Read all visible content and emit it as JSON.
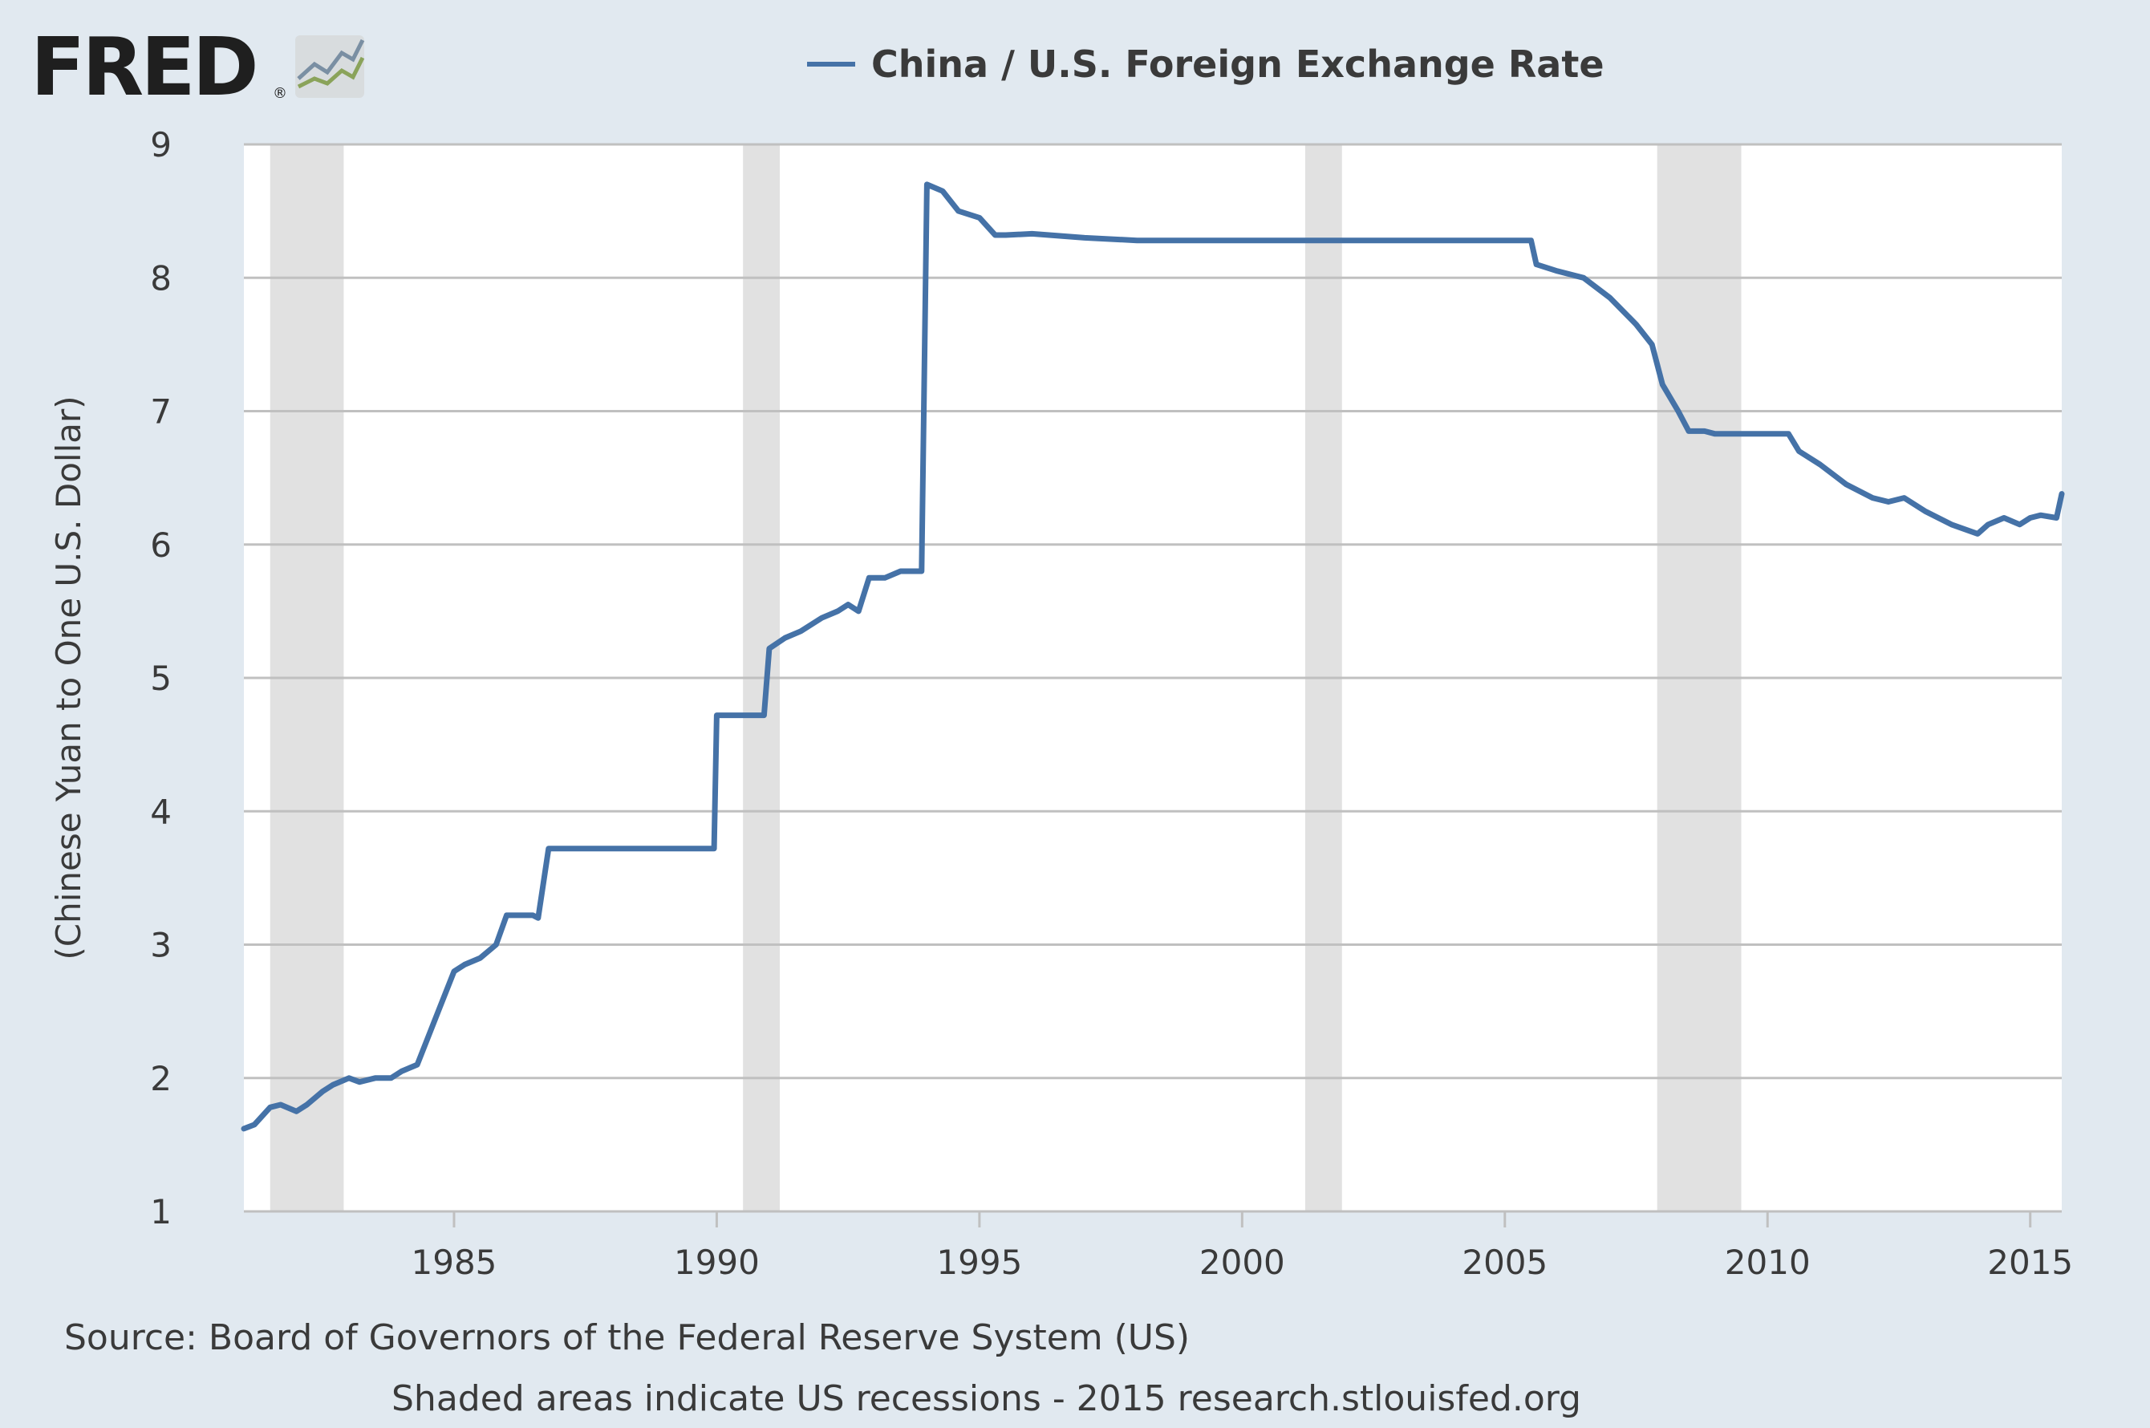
{
  "logo": {
    "text": "FRED",
    "mark": "®",
    "icon": "fred-graph-icon"
  },
  "legend": {
    "label": "China / U.S. Foreign Exchange Rate",
    "color": "#4572a7"
  },
  "footer": {
    "source": "Source: Board of Governors of the Federal Reserve System (US)",
    "note": "Shaded areas indicate US recessions - 2015 research.stlouisfed.org"
  },
  "colors": {
    "background": "#e1e9f0",
    "plot_background": "#ffffff",
    "gridline": "#c0c0c0",
    "recession_shading": "#e1e1e1",
    "series": "#4572a7"
  },
  "chart_data": {
    "type": "line",
    "title": "",
    "xlabel": "",
    "ylabel": "(Chinese Yuan to One U.S. Dollar)",
    "xlim": [
      1981.0,
      2015.6
    ],
    "ylim": [
      1,
      9
    ],
    "x_ticks": [
      "1985",
      "1990",
      "1995",
      "2000",
      "2005",
      "2010",
      "2015"
    ],
    "y_ticks": [
      "1",
      "2",
      "3",
      "4",
      "5",
      "6",
      "7",
      "8",
      "9"
    ],
    "grid": true,
    "legend_position": "top-center",
    "recessions": [
      [
        1981.5,
        1982.9
      ],
      [
        1990.5,
        1991.2
      ],
      [
        2001.2,
        2001.9
      ],
      [
        2007.9,
        2009.5
      ]
    ],
    "series": [
      {
        "name": "China / U.S. Foreign Exchange Rate",
        "x": [
          1981.0,
          1981.2,
          1981.5,
          1981.7,
          1982.0,
          1982.2,
          1982.5,
          1982.7,
          1983.0,
          1983.2,
          1983.5,
          1983.8,
          1984.0,
          1984.3,
          1984.5,
          1984.7,
          1985.0,
          1985.2,
          1985.5,
          1985.8,
          1986.0,
          1986.3,
          1986.5,
          1986.6,
          1986.8,
          1987.0,
          1988.0,
          1989.0,
          1989.95,
          1990.0,
          1990.5,
          1990.9,
          1991.0,
          1991.3,
          1991.6,
          1992.0,
          1992.3,
          1992.5,
          1992.7,
          1992.9,
          1993.2,
          1993.5,
          1993.9,
          1994.0,
          1994.3,
          1994.6,
          1995.0,
          1995.3,
          1995.5,
          1996.0,
          1997.0,
          1998.0,
          1999.0,
          2000.0,
          2001.0,
          2002.0,
          2003.0,
          2004.0,
          2005.0,
          2005.5,
          2005.6,
          2006.0,
          2006.5,
          2007.0,
          2007.5,
          2007.8,
          2008.0,
          2008.3,
          2008.5,
          2008.8,
          2009.0,
          2009.5,
          2010.0,
          2010.4,
          2010.6,
          2011.0,
          2011.5,
          2012.0,
          2012.3,
          2012.6,
          2013.0,
          2013.5,
          2014.0,
          2014.2,
          2014.5,
          2014.8,
          2015.0,
          2015.2,
          2015.5,
          2015.6
        ],
        "values": [
          1.62,
          1.65,
          1.78,
          1.8,
          1.75,
          1.8,
          1.9,
          1.95,
          2.0,
          1.97,
          2.0,
          2.0,
          2.05,
          2.1,
          2.3,
          2.5,
          2.8,
          2.85,
          2.9,
          3.0,
          3.22,
          3.22,
          3.22,
          3.2,
          3.72,
          3.72,
          3.72,
          3.72,
          3.72,
          4.72,
          4.72,
          4.72,
          5.22,
          5.3,
          5.35,
          5.45,
          5.5,
          5.55,
          5.5,
          5.75,
          5.75,
          5.8,
          5.8,
          8.7,
          8.65,
          8.5,
          8.45,
          8.32,
          8.32,
          8.33,
          8.3,
          8.28,
          8.28,
          8.28,
          8.28,
          8.28,
          8.28,
          8.28,
          8.28,
          8.28,
          8.1,
          8.05,
          8.0,
          7.85,
          7.65,
          7.5,
          7.2,
          7.0,
          6.85,
          6.85,
          6.83,
          6.83,
          6.83,
          6.83,
          6.7,
          6.6,
          6.45,
          6.35,
          6.32,
          6.35,
          6.25,
          6.15,
          6.08,
          6.15,
          6.2,
          6.15,
          6.2,
          6.22,
          6.2,
          6.38
        ]
      }
    ]
  }
}
